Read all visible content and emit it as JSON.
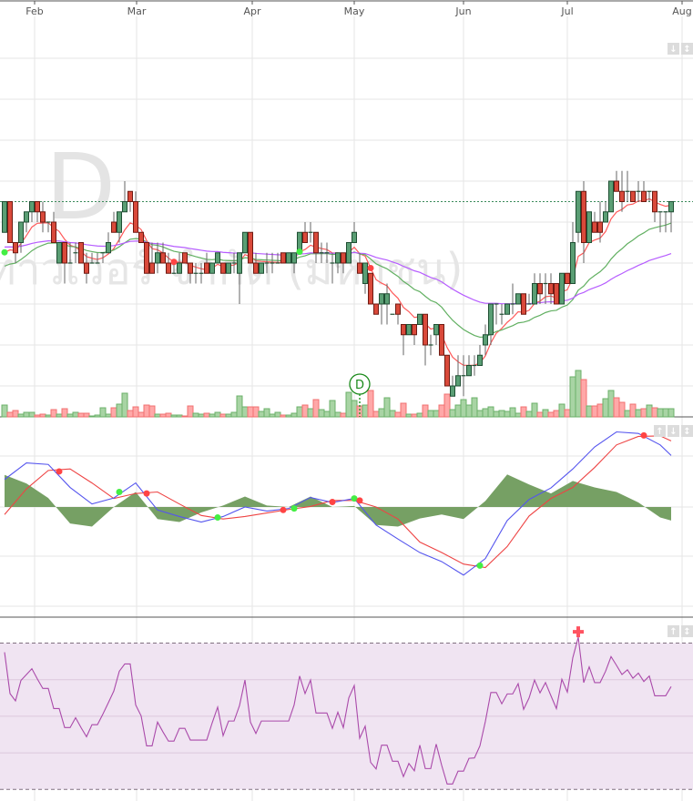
{
  "colors": {
    "up_candle": "#5a9e74",
    "up_candle_edge": "#1f4f33",
    "down_candle": "#d9493a",
    "down_candle_edge": "#6e1a12",
    "up_volume": "#a8d4a4",
    "up_volume_edge": "#6bb06a",
    "down_volume": "#ffa8a8",
    "down_volume_edge": "#f07070",
    "ma_fast": "#ff5a5a",
    "ma_mid": "#62b062",
    "ma_slow": "#b65cff",
    "macd_line": "#5555ee",
    "macd_signal": "#ee4444",
    "macd_hist": "#76a064",
    "rsi_line": "#aa4aaa",
    "rsi_band": "#f0e4f2",
    "last_price_line": "#3a8a5a"
  },
  "watermark": {
    "symbol": "D",
    "company": "ทาวเวอร์ จำกัด (มหาชน)"
  },
  "chart_data": [
    {
      "type": "candlestick",
      "panel": "price",
      "x_tick_labels": [
        "Feb",
        "Mar",
        "Apr",
        "May",
        "Jun",
        "Jul",
        "Aug"
      ],
      "y_axis": "unlabeled price levels",
      "ylim": [
        -4,
        36
      ],
      "grid": true,
      "last_price_line": 18,
      "ohlc": [
        [
          15,
          18,
          15,
          18
        ],
        [
          18,
          18,
          14,
          14
        ],
        [
          14,
          14,
          12,
          13
        ],
        [
          14,
          16,
          13,
          16
        ],
        [
          16,
          17,
          15,
          17
        ],
        [
          17,
          18,
          16,
          18
        ],
        [
          18,
          18,
          16,
          17
        ],
        [
          17,
          18,
          15,
          16
        ],
        [
          16,
          16,
          15,
          16
        ],
        [
          16,
          17,
          14,
          14
        ],
        [
          12,
          14,
          12,
          14
        ],
        [
          14,
          14,
          10,
          12
        ],
        [
          12,
          14,
          12,
          12
        ],
        [
          13,
          14,
          12,
          13
        ],
        [
          14,
          14,
          12,
          12
        ],
        [
          12,
          13,
          10,
          11
        ],
        [
          12,
          13,
          12,
          12
        ],
        [
          12,
          13,
          12,
          12
        ],
        [
          13,
          13,
          12,
          13
        ],
        [
          13,
          15,
          13,
          14
        ],
        [
          16,
          17,
          15,
          15
        ],
        [
          15,
          17,
          14,
          17
        ],
        [
          17,
          20,
          17,
          18
        ],
        [
          19,
          19,
          17,
          18
        ],
        [
          18,
          19,
          15,
          15
        ],
        [
          15,
          15,
          14,
          14
        ],
        [
          14,
          14,
          11,
          11
        ],
        [
          12,
          14,
          11,
          11
        ],
        [
          12,
          14,
          11,
          13
        ],
        [
          13,
          14,
          12,
          12
        ],
        [
          12,
          13,
          11,
          11
        ],
        [
          11,
          12,
          11,
          11
        ],
        [
          11,
          13,
          11,
          12
        ],
        [
          13,
          13,
          12,
          12
        ],
        [
          12,
          12,
          10,
          11
        ],
        [
          11,
          12,
          10,
          11
        ],
        [
          11,
          12,
          10,
          11
        ],
        [
          12,
          13,
          11,
          11
        ],
        [
          11,
          12,
          11,
          12
        ],
        [
          12,
          13,
          12,
          13
        ],
        [
          12,
          12,
          11,
          11
        ],
        [
          11,
          12,
          11,
          12
        ],
        [
          12,
          13,
          11,
          12
        ],
        [
          11,
          13,
          8,
          13
        ],
        [
          13,
          15,
          13,
          15
        ],
        [
          15,
          15,
          12,
          12
        ],
        [
          12,
          13,
          11,
          11
        ],
        [
          11,
          12,
          11,
          12
        ],
        [
          12,
          13,
          11,
          12
        ],
        [
          12,
          13,
          11,
          12
        ],
        [
          12,
          13,
          12,
          12
        ],
        [
          13,
          13,
          12,
          12
        ],
        [
          12,
          13,
          12,
          13
        ],
        [
          12,
          13,
          11,
          13
        ],
        [
          13,
          15,
          13,
          15
        ],
        [
          15,
          16,
          14,
          14
        ],
        [
          15,
          16,
          14,
          15
        ],
        [
          15,
          15,
          12,
          13
        ],
        [
          13,
          14,
          12,
          13
        ],
        [
          13,
          14,
          12,
          13
        ],
        [
          12,
          13,
          10,
          12
        ],
        [
          12,
          13,
          11,
          13
        ],
        [
          13,
          13,
          11,
          12
        ],
        [
          12,
          14,
          12,
          14
        ],
        [
          14,
          16,
          14,
          15
        ],
        [
          12,
          13,
          11,
          11
        ],
        [
          10,
          12,
          9,
          12
        ],
        [
          11,
          11,
          8,
          8
        ],
        [
          8,
          8,
          7,
          7
        ],
        [
          8,
          9,
          6,
          9
        ],
        [
          8,
          10,
          6,
          9
        ],
        [
          7,
          7,
          7,
          7
        ],
        [
          8,
          8,
          6,
          7
        ],
        [
          6,
          6,
          3,
          5
        ],
        [
          5,
          6,
          5,
          6
        ],
        [
          6,
          6,
          4,
          5
        ],
        [
          6,
          7,
          6,
          7
        ],
        [
          7,
          7,
          2,
          4
        ],
        [
          4,
          5,
          3,
          4
        ],
        [
          5,
          6,
          4,
          6
        ],
        [
          6,
          6,
          3,
          3
        ],
        [
          3,
          3,
          0,
          0
        ],
        [
          -1,
          1,
          -1,
          0
        ],
        [
          0,
          3,
          0,
          1
        ],
        [
          1,
          3,
          -1,
          1
        ],
        [
          1,
          3,
          1,
          2
        ],
        [
          2,
          3,
          1,
          2
        ],
        [
          2,
          4,
          2,
          3
        ],
        [
          4,
          6,
          3,
          5
        ],
        [
          5,
          8,
          4,
          8
        ],
        [
          8,
          8,
          6,
          8
        ],
        [
          7,
          8,
          6,
          7
        ],
        [
          7,
          8,
          7,
          8
        ],
        [
          8,
          10,
          7,
          8
        ],
        [
          8,
          9,
          8,
          9
        ],
        [
          9,
          9,
          7,
          7
        ],
        [
          8,
          9,
          8,
          8
        ],
        [
          8,
          11,
          8,
          10
        ],
        [
          10,
          11,
          8,
          9
        ],
        [
          10,
          11,
          8,
          10
        ],
        [
          10,
          11,
          8,
          9
        ],
        [
          10,
          10,
          8,
          8
        ],
        [
          8,
          11,
          8,
          11
        ],
        [
          11,
          11,
          10,
          10
        ],
        [
          10,
          16,
          10,
          14
        ],
        [
          15,
          19,
          14,
          19
        ],
        [
          19,
          20,
          12,
          14
        ],
        [
          14,
          17,
          14,
          17
        ],
        [
          16,
          17,
          15,
          15
        ],
        [
          16,
          18,
          14,
          15
        ],
        [
          16,
          18,
          16,
          17
        ],
        [
          17,
          20,
          17,
          20
        ],
        [
          20,
          21,
          19,
          19
        ],
        [
          19,
          21,
          17,
          18
        ],
        [
          19,
          21,
          18,
          19
        ],
        [
          19,
          19,
          18,
          18
        ],
        [
          19,
          20,
          18,
          19
        ],
        [
          19,
          20,
          18,
          18
        ],
        [
          19,
          19,
          18,
          19
        ],
        [
          19,
          19,
          16,
          17
        ],
        [
          17,
          17,
          15,
          17
        ],
        [
          17,
          17,
          15,
          17
        ],
        [
          17,
          18,
          15,
          18
        ]
      ],
      "volume": [
        13,
        5,
        7,
        3,
        5,
        5,
        2,
        3,
        2,
        8,
        3,
        9,
        3,
        5,
        4,
        4,
        1,
        2,
        10,
        3,
        10,
        14,
        26,
        7,
        11,
        5,
        13,
        12,
        3,
        3,
        4,
        2,
        2,
        1,
        12,
        4,
        3,
        4,
        3,
        5,
        3,
        3,
        5,
        23,
        11,
        11,
        11,
        6,
        9,
        3,
        5,
        2,
        2,
        4,
        11,
        13,
        9,
        19,
        8,
        6,
        18,
        5,
        4,
        27,
        18,
        12,
        13,
        29,
        6,
        9,
        21,
        7,
        5,
        15,
        3,
        3,
        4,
        13,
        7,
        7,
        13,
        25,
        8,
        13,
        19,
        13,
        21,
        7,
        9,
        11,
        6,
        7,
        6,
        10,
        4,
        11,
        6,
        15,
        5,
        8,
        5,
        7,
        14,
        8,
        44,
        51,
        41,
        12,
        12,
        14,
        20,
        29,
        21,
        16,
        7,
        14,
        8,
        9,
        13,
        10,
        9,
        9,
        9
      ],
      "moving_averages": [
        "fast",
        "mid",
        "slow"
      ],
      "ma_signals": [
        {
          "index": 0,
          "type": "buy"
        },
        {
          "index": 31,
          "type": "sell"
        },
        {
          "index": 54,
          "type": "buy"
        },
        {
          "index": 67,
          "type": "sell"
        }
      ],
      "event_markers": [
        {
          "index": 65,
          "label": "D"
        }
      ]
    },
    {
      "type": "line",
      "panel": "macd",
      "ylim": [
        -2,
        1.75
      ],
      "grid": true,
      "points_index": [
        0,
        4,
        8,
        12,
        16,
        20,
        24,
        28,
        32,
        36,
        40,
        44,
        48,
        52,
        56,
        60,
        64,
        68,
        72,
        76,
        80,
        84,
        88,
        92,
        96,
        100,
        104,
        108,
        112,
        116,
        120,
        122
      ],
      "macd": [
        0.55,
        0.88,
        0.85,
        0.39,
        0.06,
        0.18,
        0.48,
        -0.06,
        -0.19,
        -0.3,
        -0.19,
        0,
        -0.08,
        -0.03,
        0.19,
        0.09,
        0.17,
        -0.36,
        -0.64,
        -0.91,
        -1.09,
        -1.36,
        -1.03,
        -0.27,
        0.15,
        0.38,
        0.76,
        1.2,
        1.5,
        1.47,
        1.24,
        1.03
      ],
      "signal": [
        -0.15,
        0.36,
        0.73,
        0.76,
        0.48,
        0.17,
        0.27,
        0.3,
        0.06,
        -0.17,
        -0.24,
        -0.19,
        -0.12,
        -0.05,
        0.01,
        0.13,
        0.13,
        0,
        -0.24,
        -0.7,
        -0.91,
        -1.14,
        -1.21,
        -0.79,
        -0.18,
        0.17,
        0.39,
        0.79,
        1.24,
        1.41,
        1.42,
        1.32
      ],
      "histogram": [
        0.64,
        0.47,
        0.18,
        -0.33,
        -0.39,
        0,
        0.3,
        -0.24,
        -0.3,
        -0.11,
        0.03,
        0.21,
        0.03,
        0,
        0.21,
        0,
        0.02,
        -0.36,
        -0.39,
        -0.23,
        -0.15,
        -0.24,
        0.12,
        0.65,
        0.45,
        0.27,
        0.52,
        0.39,
        0.3,
        0.09,
        -0.21,
        -0.27
      ],
      "cross_signals": [
        {
          "index": 10,
          "value": 0.71,
          "type": "sell"
        },
        {
          "index": 21,
          "value": 0.3,
          "type": "buy"
        },
        {
          "index": 26,
          "value": 0.27,
          "type": "sell"
        },
        {
          "index": 39,
          "value": -0.21,
          "type": "buy"
        },
        {
          "index": 51,
          "value": -0.06,
          "type": "sell"
        },
        {
          "index": 53,
          "value": -0.03,
          "type": "buy"
        },
        {
          "index": 60,
          "value": 0.1,
          "type": "sell"
        },
        {
          "index": 64,
          "value": 0.17,
          "type": "buy"
        },
        {
          "index": 65,
          "value": 0.13,
          "type": "sell"
        },
        {
          "index": 87,
          "value": -1.17,
          "type": "buy"
        },
        {
          "index": 117,
          "value": 1.43,
          "type": "sell"
        }
      ]
    },
    {
      "type": "line",
      "panel": "rsi",
      "ylim": [
        23,
        73
      ],
      "band": [
        30,
        70
      ],
      "grid_levels": [
        40,
        50,
        60
      ],
      "rsi": [
        67.5,
        56.2,
        54.2,
        59.8,
        61.4,
        63.0,
        60.2,
        57.6,
        57.6,
        52.1,
        52.1,
        46.9,
        46.9,
        49.6,
        46.9,
        44.4,
        47.7,
        47.7,
        50.6,
        53.7,
        56.9,
        62.3,
        64.3,
        64.3,
        53.1,
        50.1,
        41.9,
        41.9,
        48.4,
        45.7,
        43.2,
        43.2,
        46.7,
        46.7,
        43.5,
        43.5,
        43.5,
        43.5,
        48.2,
        52.5,
        44.7,
        48.7,
        48.7,
        52.9,
        59.9,
        48.4,
        45.3,
        48.7,
        48.7,
        48.7,
        48.7,
        48.7,
        48.7,
        53.1,
        61.0,
        56.2,
        59.9,
        50.9,
        50.9,
        50.9,
        46.7,
        51.1,
        46.9,
        55.0,
        58.4,
        44.0,
        47.3,
        37.4,
        35.6,
        42.1,
        42.1,
        37.7,
        37.7,
        33.5,
        37.1,
        35.1,
        42.1,
        35.7,
        35.7,
        42.4,
        36.6,
        31.5,
        31.5,
        35.0,
        35.0,
        38.5,
        38.6,
        41.9,
        48.6,
        56.5,
        56.5,
        53.4,
        56.1,
        56.1,
        58.9,
        51.9,
        55.0,
        59.9,
        56.4,
        59.2,
        55.6,
        52.1,
        60.1,
        56.6,
        66.0,
        71.6,
        59.2,
        63.5,
        59.2,
        59.2,
        62.3,
        66.3,
        63.9,
        61.4,
        62.7,
        60.4,
        61.8,
        59.5,
        61.0,
        55.6,
        55.6,
        55.6,
        58.1
      ],
      "overbought_marker_index": 105
    }
  ],
  "panel_buttons": {
    "price": [
      "down-arrow",
      "up-down-arrow"
    ],
    "macd": [
      "up-arrow",
      "down-arrow",
      "up-down-arrow"
    ],
    "rsi": [
      "up-arrow",
      "up-down-arrow"
    ]
  }
}
